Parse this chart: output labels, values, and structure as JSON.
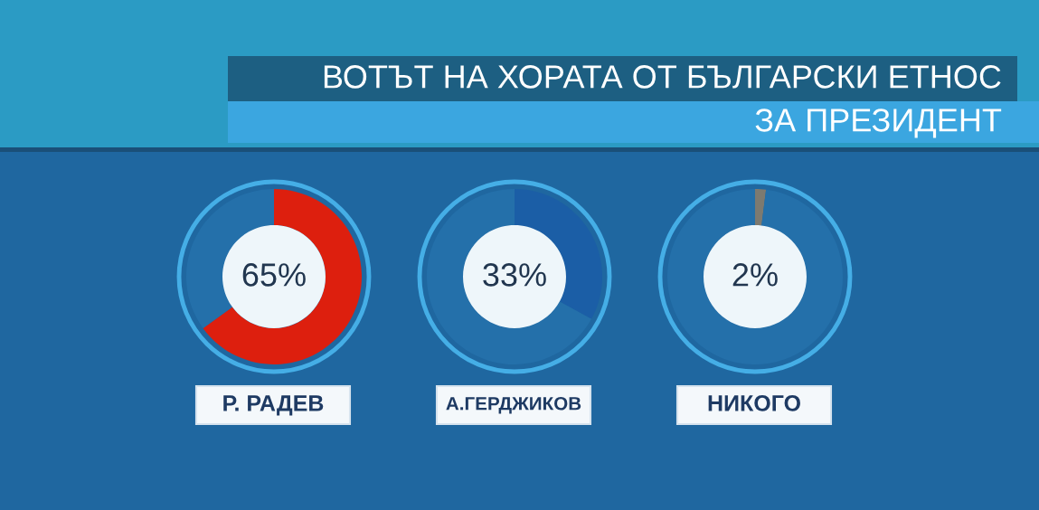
{
  "chart_data": [
    {
      "type": "donut",
      "title": "ВОТЪТ НА ХОРАТА ОТ БЪЛГАРСКИ ЕТНОС",
      "subtitle": "ЗА ПРЕЗИДЕНТ",
      "xlabel": "Р. РАДЕВ",
      "categories": [
        null,
        null
      ],
      "values": [
        65,
        35
      ],
      "colors": [
        "#dd1f0e",
        "#2470aa"
      ],
      "value_labels": [
        "65%",
        null
      ]
    },
    {
      "type": "donut",
      "xlabel": "А.ГЕРДЖИКОВ",
      "categories": [
        null,
        null
      ],
      "values": [
        33,
        67
      ],
      "colors": [
        "#1b5ea6",
        "#2470aa"
      ],
      "value_labels": [
        "33%",
        null
      ]
    },
    {
      "type": "donut",
      "xlabel": "НИКОГО",
      "categories": [
        null,
        null
      ],
      "values": [
        2,
        98
      ],
      "colors": [
        "#7d7a70",
        "#2470aa"
      ],
      "value_labels": [
        "2%",
        null
      ]
    }
  ]
}
